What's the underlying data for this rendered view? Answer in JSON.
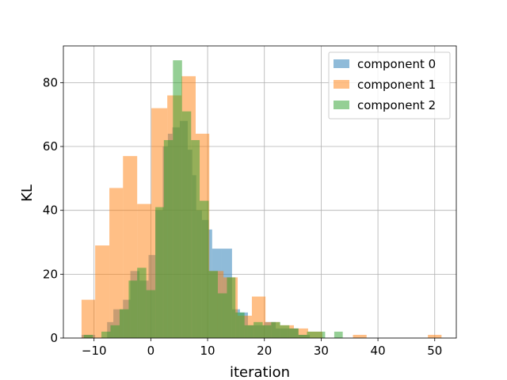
{
  "chart_data": {
    "type": "bar",
    "subtype": "overlaid-histogram",
    "xlabel": "iteration",
    "ylabel": "KL",
    "xlim": [
      -15.4,
      53.8
    ],
    "ylim": [
      0,
      91.5
    ],
    "xticks": [
      -10,
      0,
      10,
      20,
      30,
      40,
      50
    ],
    "yticks": [
      0,
      20,
      40,
      60,
      80
    ],
    "grid": true,
    "legend_position": "upper-right",
    "series": [
      {
        "name": "component 0",
        "color": "#1f77b4",
        "alpha": 0.5,
        "bins": [
          [
            -12.2,
            -9.8,
            1
          ],
          [
            -7.7,
            -6.6,
            5
          ],
          [
            -6.6,
            -4.9,
            9
          ],
          [
            -4.9,
            -3.6,
            12
          ],
          [
            -3.6,
            -2.0,
            21
          ],
          [
            -2.0,
            -0.4,
            18
          ],
          [
            -0.4,
            0.8,
            26
          ],
          [
            0.8,
            2.1,
            40
          ],
          [
            2.1,
            3.0,
            60
          ],
          [
            3.0,
            3.8,
            64
          ],
          [
            3.8,
            5.1,
            66
          ],
          [
            5.1,
            6.5,
            68
          ],
          [
            6.5,
            7.3,
            59
          ],
          [
            7.3,
            8.0,
            51
          ],
          [
            8.0,
            9.0,
            40
          ],
          [
            9.0,
            10.2,
            37
          ],
          [
            10.2,
            10.8,
            34
          ],
          [
            10.8,
            12.5,
            28
          ],
          [
            12.5,
            14.3,
            28
          ],
          [
            14.3,
            15.7,
            9
          ],
          [
            15.7,
            17.1,
            8
          ],
          [
            17.1,
            18.5,
            4
          ],
          [
            18.5,
            20.0,
            4
          ],
          [
            20.0,
            22.0,
            5
          ],
          [
            22.0,
            24.0,
            3
          ],
          [
            24.0,
            26.0,
            3
          ],
          [
            26.0,
            28.0,
            1
          ]
        ]
      },
      {
        "name": "component 1",
        "color": "#ff7f0e",
        "alpha": 0.5,
        "bins": [
          [
            -12.2,
            -9.8,
            12
          ],
          [
            -9.8,
            -7.3,
            29
          ],
          [
            -7.3,
            -4.9,
            47
          ],
          [
            -4.9,
            -2.4,
            57
          ],
          [
            -2.4,
            0.1,
            42
          ],
          [
            0.1,
            2.9,
            72
          ],
          [
            2.9,
            5.4,
            76
          ],
          [
            5.4,
            7.9,
            82
          ],
          [
            7.9,
            10.3,
            64
          ],
          [
            10.3,
            12.8,
            21
          ],
          [
            12.8,
            15.3,
            19
          ],
          [
            15.3,
            17.8,
            7
          ],
          [
            17.8,
            20.2,
            13
          ],
          [
            20.2,
            22.7,
            5
          ],
          [
            22.7,
            25.2,
            4
          ],
          [
            25.2,
            27.7,
            3
          ],
          [
            27.7,
            30.2,
            2
          ],
          [
            35.6,
            38.0,
            1
          ],
          [
            48.8,
            51.2,
            1
          ]
        ]
      },
      {
        "name": "component 2",
        "color": "#2ca02c",
        "alpha": 0.5,
        "bins": [
          [
            -11.8,
            -10.2,
            1
          ],
          [
            -10.2,
            -8.7,
            0
          ],
          [
            -8.7,
            -7.1,
            2
          ],
          [
            -7.1,
            -5.5,
            4
          ],
          [
            -5.5,
            -3.9,
            9
          ],
          [
            -3.9,
            -2.4,
            18
          ],
          [
            -2.4,
            -0.8,
            22
          ],
          [
            -0.8,
            0.8,
            15
          ],
          [
            0.8,
            2.3,
            41
          ],
          [
            2.3,
            3.9,
            62
          ],
          [
            3.9,
            5.5,
            87
          ],
          [
            5.5,
            7.1,
            71
          ],
          [
            7.1,
            8.6,
            62
          ],
          [
            8.6,
            10.2,
            43
          ],
          [
            10.2,
            11.8,
            21
          ],
          [
            11.8,
            13.4,
            14
          ],
          [
            13.4,
            14.9,
            19
          ],
          [
            14.9,
            16.5,
            8
          ],
          [
            16.5,
            18.1,
            4
          ],
          [
            18.1,
            19.7,
            5
          ],
          [
            19.7,
            21.2,
            4
          ],
          [
            21.2,
            22.8,
            5
          ],
          [
            22.8,
            24.4,
            4
          ],
          [
            24.4,
            26.0,
            3
          ],
          [
            26.0,
            27.5,
            1
          ],
          [
            27.5,
            29.1,
            2
          ],
          [
            29.1,
            30.7,
            2
          ],
          [
            30.7,
            32.3,
            0
          ],
          [
            32.3,
            33.8,
            2
          ]
        ]
      }
    ]
  }
}
